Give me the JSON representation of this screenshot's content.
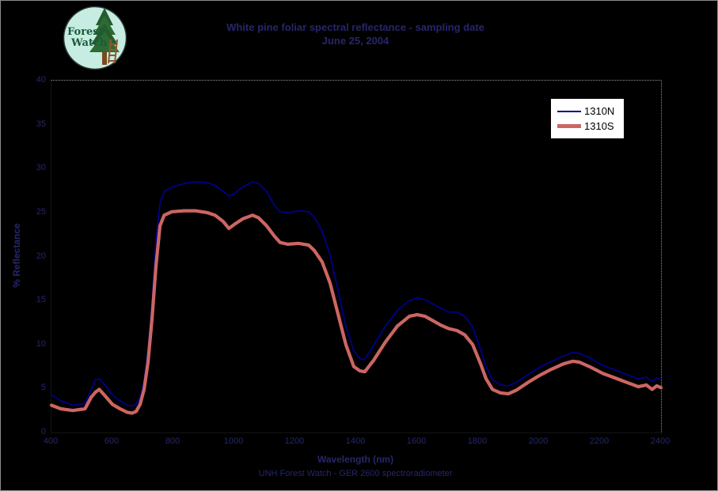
{
  "logo": {
    "line1": "Forest",
    "line2": "Watch"
  },
  "title": {
    "line1": "White pine foliar spectral reflectance - sampling date",
    "line2": "June 25, 2004"
  },
  "axes": {
    "y_title": "% Reflectance",
    "x_title": "Wavelength (nm)",
    "y_ticks": [
      0,
      5,
      10,
      15,
      20,
      25,
      30,
      35,
      40
    ],
    "x_ticks": [
      400,
      600,
      800,
      1000,
      1200,
      1400,
      1600,
      1800,
      2000,
      2200,
      2400
    ]
  },
  "footer": "UNH Forest Watch - GER 2600 spectroradiometer",
  "legend": {
    "items": [
      {
        "label": "1310N",
        "color": "#00008b",
        "thickness": 2
      },
      {
        "label": "1310S",
        "color": "#cc6662",
        "thickness": 5
      }
    ]
  },
  "colors": {
    "background": "#000000",
    "plot_border": "#909090",
    "axis_text": "#26266b",
    "series_north": "#00008b",
    "series_south": "#cc6662",
    "legend_background": "#ffffff",
    "logo_circle": "#c7ede3",
    "logo_tree": "#2d6a34",
    "logo_text": "#1b5a3a",
    "logo_ladder": "#8b5a2b"
  },
  "chart_data": {
    "type": "line",
    "title": "White pine foliar spectral reflectance - sampling date June 25, 2004",
    "xlabel": "Wavelength (nm)",
    "ylabel": "% Reflectance",
    "xlim": [
      400,
      2400
    ],
    "ylim": [
      0,
      40
    ],
    "grid": false,
    "legend_position": "top-right",
    "background": "#000000",
    "x": [
      400,
      430,
      470,
      510,
      530,
      545,
      557,
      575,
      600,
      625,
      648,
      665,
      678,
      691,
      704,
      717,
      730,
      743,
      756,
      770,
      795,
      834,
      873,
      911,
      937,
      963,
      982,
      1002,
      1028,
      1060,
      1080,
      1106,
      1132,
      1150,
      1176,
      1210,
      1244,
      1262,
      1288,
      1314,
      1340,
      1366,
      1392,
      1412,
      1428,
      1457,
      1496,
      1535,
      1574,
      1600,
      1626,
      1652,
      1678,
      1704,
      1730,
      1756,
      1782,
      1808,
      1826,
      1847,
      1873,
      1899,
      1925,
      1964,
      2002,
      2041,
      2080,
      2111,
      2132,
      2171,
      2210,
      2249,
      2287,
      2326,
      2352,
      2371,
      2386,
      2400
    ],
    "series": [
      {
        "name": "1310N",
        "color": "#00008b",
        "width": 1.8,
        "values": [
          4.3,
          3.6,
          3.1,
          3.3,
          4.9,
          6.0,
          6.1,
          5.4,
          4.3,
          3.6,
          3.1,
          3.0,
          3.2,
          4.0,
          5.8,
          9.4,
          14.8,
          22.0,
          26.1,
          27.4,
          27.9,
          28.3,
          28.5,
          28.4,
          28.1,
          27.4,
          26.9,
          27.2,
          27.9,
          28.5,
          28.3,
          27.4,
          25.8,
          25.1,
          25.0,
          25.2,
          25.1,
          24.5,
          22.9,
          20.2,
          16.2,
          12.1,
          9.3,
          8.4,
          8.3,
          9.9,
          12.1,
          13.9,
          15.0,
          15.3,
          15.1,
          14.6,
          14.1,
          13.7,
          13.7,
          13.2,
          12.0,
          9.4,
          7.5,
          6.0,
          5.4,
          5.3,
          5.7,
          6.6,
          7.4,
          8.1,
          8.7,
          9.1,
          9.0,
          8.4,
          7.6,
          7.1,
          6.6,
          6.1,
          6.3,
          5.8,
          6.2,
          6.0
        ]
      },
      {
        "name": "1310S",
        "color": "#cc6662",
        "width": 4.2,
        "values": [
          3.1,
          2.7,
          2.5,
          2.7,
          4.0,
          4.6,
          4.9,
          4.2,
          3.2,
          2.7,
          2.3,
          2.2,
          2.4,
          3.2,
          4.9,
          8.0,
          13.0,
          19.0,
          23.5,
          24.7,
          25.1,
          25.2,
          25.2,
          25.0,
          24.7,
          24.0,
          23.2,
          23.7,
          24.3,
          24.7,
          24.4,
          23.5,
          22.3,
          21.6,
          21.4,
          21.5,
          21.3,
          20.7,
          19.4,
          17.0,
          13.5,
          10.0,
          7.5,
          7.0,
          6.9,
          8.2,
          10.3,
          12.1,
          13.2,
          13.4,
          13.2,
          12.7,
          12.2,
          11.8,
          11.6,
          11.1,
          10.0,
          7.8,
          6.1,
          4.9,
          4.5,
          4.4,
          4.8,
          5.7,
          6.5,
          7.2,
          7.8,
          8.1,
          8.0,
          7.4,
          6.7,
          6.2,
          5.7,
          5.2,
          5.4,
          4.9,
          5.3,
          5.1
        ]
      }
    ]
  }
}
